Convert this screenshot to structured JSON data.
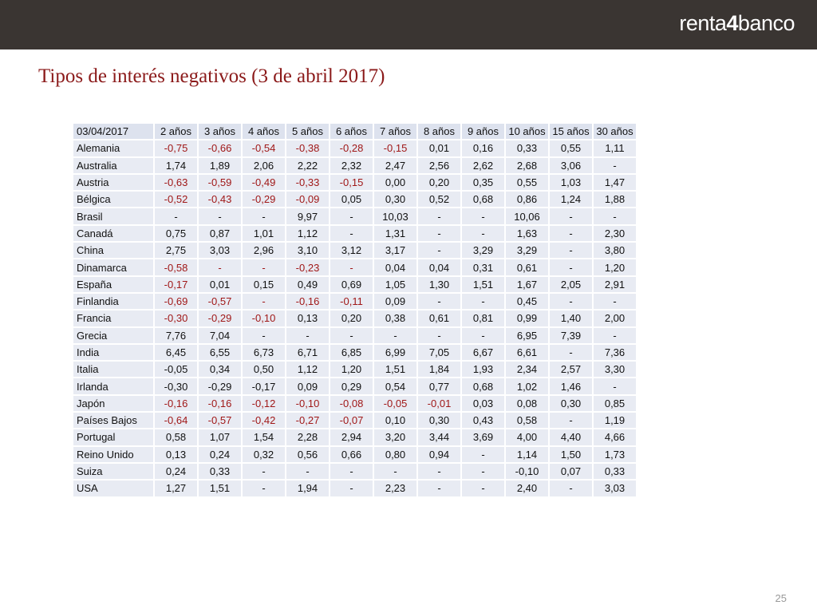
{
  "brand": {
    "logo_text_pre": "renta",
    "logo_text_four": "4",
    "logo_text_post": "banco"
  },
  "title": "Tipos de interés negativos (3 de abril 2017)",
  "page_number": "25",
  "table": {
    "header": [
      "03/04/2017",
      "2 años",
      "3 años",
      "4 años",
      "5 años",
      "6 años",
      "7 años",
      "8 años",
      "9 años",
      "10 años",
      "15 años",
      "30 años"
    ],
    "rows": [
      {
        "country": "Alemania",
        "values": [
          "-0,75",
          "-0,66",
          "-0,54",
          "-0,38",
          "-0,28",
          "-0,15",
          "0,01",
          "0,16",
          "0,33",
          "0,55",
          "1,11"
        ],
        "negative": [
          true,
          true,
          true,
          true,
          true,
          true,
          false,
          false,
          false,
          false,
          false
        ]
      },
      {
        "country": "Australia",
        "values": [
          "1,74",
          "1,89",
          "2,06",
          "2,22",
          "2,32",
          "2,47",
          "2,56",
          "2,62",
          "2,68",
          "3,06",
          "-"
        ],
        "negative": [
          false,
          false,
          false,
          false,
          false,
          false,
          false,
          false,
          false,
          false,
          false
        ]
      },
      {
        "country": "Austria",
        "values": [
          "-0,63",
          "-0,59",
          "-0,49",
          "-0,33",
          "-0,15",
          "0,00",
          "0,20",
          "0,35",
          "0,55",
          "1,03",
          "1,47"
        ],
        "negative": [
          true,
          true,
          true,
          true,
          true,
          false,
          false,
          false,
          false,
          false,
          false
        ]
      },
      {
        "country": "Bélgica",
        "values": [
          "-0,52",
          "-0,43",
          "-0,29",
          "-0,09",
          "0,05",
          "0,30",
          "0,52",
          "0,68",
          "0,86",
          "1,24",
          "1,88"
        ],
        "negative": [
          true,
          true,
          true,
          true,
          false,
          false,
          false,
          false,
          false,
          false,
          false
        ]
      },
      {
        "country": "Brasil",
        "values": [
          "-",
          "-",
          "-",
          "9,97",
          "-",
          "10,03",
          "-",
          "-",
          "10,06",
          "-",
          "-"
        ],
        "negative": [
          false,
          false,
          false,
          false,
          false,
          false,
          false,
          false,
          false,
          false,
          false
        ]
      },
      {
        "country": "Canadá",
        "values": [
          "0,75",
          "0,87",
          "1,01",
          "1,12",
          "-",
          "1,31",
          "-",
          "-",
          "1,63",
          "-",
          "2,30"
        ],
        "negative": [
          false,
          false,
          false,
          false,
          false,
          false,
          false,
          false,
          false,
          false,
          false
        ]
      },
      {
        "country": "China",
        "values": [
          "2,75",
          "3,03",
          "2,96",
          "3,10",
          "3,12",
          "3,17",
          "-",
          "3,29",
          "3,29",
          "-",
          "3,80"
        ],
        "negative": [
          false,
          false,
          false,
          false,
          false,
          false,
          false,
          false,
          false,
          false,
          false
        ]
      },
      {
        "country": "Dinamarca",
        "values": [
          "-0,58",
          "-",
          "-",
          "-0,23",
          "-",
          "0,04",
          "0,04",
          "0,31",
          "0,61",
          "-",
          "1,20"
        ],
        "negative": [
          true,
          true,
          true,
          true,
          true,
          false,
          false,
          false,
          false,
          false,
          false
        ]
      },
      {
        "country": "España",
        "values": [
          "-0,17",
          "0,01",
          "0,15",
          "0,49",
          "0,69",
          "1,05",
          "1,30",
          "1,51",
          "1,67",
          "2,05",
          "2,91"
        ],
        "negative": [
          true,
          false,
          false,
          false,
          false,
          false,
          false,
          false,
          false,
          false,
          false
        ]
      },
      {
        "country": "Finlandia",
        "values": [
          "-0,69",
          "-0,57",
          "-",
          "-0,16",
          "-0,11",
          "0,09",
          "-",
          "-",
          "0,45",
          "-",
          "-"
        ],
        "negative": [
          true,
          true,
          true,
          true,
          true,
          false,
          false,
          false,
          false,
          false,
          false
        ]
      },
      {
        "country": "Francia",
        "values": [
          "-0,30",
          "-0,29",
          "-0,10",
          "0,13",
          "0,20",
          "0,38",
          "0,61",
          "0,81",
          "0,99",
          "1,40",
          "2,00"
        ],
        "negative": [
          true,
          true,
          true,
          false,
          false,
          false,
          false,
          false,
          false,
          false,
          false
        ]
      },
      {
        "country": "Grecia",
        "values": [
          "7,76",
          "7,04",
          "-",
          "-",
          "-",
          "-",
          "-",
          "-",
          "6,95",
          "7,39",
          "-"
        ],
        "negative": [
          false,
          false,
          false,
          false,
          false,
          false,
          false,
          false,
          false,
          false,
          false
        ]
      },
      {
        "country": "India",
        "values": [
          "6,45",
          "6,55",
          "6,73",
          "6,71",
          "6,85",
          "6,99",
          "7,05",
          "6,67",
          "6,61",
          "-",
          "7,36"
        ],
        "negative": [
          false,
          false,
          false,
          false,
          false,
          false,
          false,
          false,
          false,
          false,
          false
        ]
      },
      {
        "country": "Italia",
        "values": [
          "-0,05",
          "0,34",
          "0,50",
          "1,12",
          "1,20",
          "1,51",
          "1,84",
          "1,93",
          "2,34",
          "2,57",
          "3,30"
        ],
        "negative": [
          false,
          false,
          false,
          false,
          false,
          false,
          false,
          false,
          false,
          false,
          false
        ]
      },
      {
        "country": "Irlanda",
        "values": [
          "-0,30",
          "-0,29",
          "-0,17",
          "0,09",
          "0,29",
          "0,54",
          "0,77",
          "0,68",
          "1,02",
          "1,46",
          "-"
        ],
        "negative": [
          false,
          false,
          false,
          false,
          false,
          false,
          false,
          false,
          false,
          false,
          false
        ]
      },
      {
        "country": "Japón",
        "values": [
          "-0,16",
          "-0,16",
          "-0,12",
          "-0,10",
          "-0,08",
          "-0,05",
          "-0,01",
          "0,03",
          "0,08",
          "0,30",
          "0,85"
        ],
        "negative": [
          true,
          true,
          true,
          true,
          true,
          true,
          true,
          false,
          false,
          false,
          false
        ]
      },
      {
        "country": "Países Bajos",
        "values": [
          "-0,64",
          "-0,57",
          "-0,42",
          "-0,27",
          "-0,07",
          "0,10",
          "0,30",
          "0,43",
          "0,58",
          "-",
          "1,19"
        ],
        "negative": [
          true,
          true,
          true,
          true,
          true,
          false,
          false,
          false,
          false,
          false,
          false
        ]
      },
      {
        "country": "Portugal",
        "values": [
          "0,58",
          "1,07",
          "1,54",
          "2,28",
          "2,94",
          "3,20",
          "3,44",
          "3,69",
          "4,00",
          "4,40",
          "4,66"
        ],
        "negative": [
          false,
          false,
          false,
          false,
          false,
          false,
          false,
          false,
          false,
          false,
          false
        ]
      },
      {
        "country": "Reino Unido",
        "values": [
          "0,13",
          "0,24",
          "0,32",
          "0,56",
          "0,66",
          "0,80",
          "0,94",
          "-",
          "1,14",
          "1,50",
          "1,73"
        ],
        "negative": [
          false,
          false,
          false,
          false,
          false,
          false,
          false,
          false,
          false,
          false,
          false
        ]
      },
      {
        "country": "Suiza",
        "values": [
          "0,24",
          "0,33",
          "-",
          "-",
          "-",
          "-",
          "-",
          "-",
          "-0,10",
          "0,07",
          "0,33"
        ],
        "negative": [
          false,
          false,
          false,
          false,
          false,
          false,
          false,
          false,
          false,
          false,
          false
        ]
      },
      {
        "country": "USA",
        "values": [
          "1,27",
          "1,51",
          "-",
          "1,94",
          "-",
          "2,23",
          "-",
          "-",
          "2,40",
          "-",
          "3,03"
        ],
        "negative": [
          false,
          false,
          false,
          false,
          false,
          false,
          false,
          false,
          false,
          false,
          false
        ]
      }
    ]
  },
  "colors": {
    "topbar": "#3a3532",
    "title": "#8b1a1a",
    "negative": "#a01818",
    "cell": "#e8ebf3"
  }
}
